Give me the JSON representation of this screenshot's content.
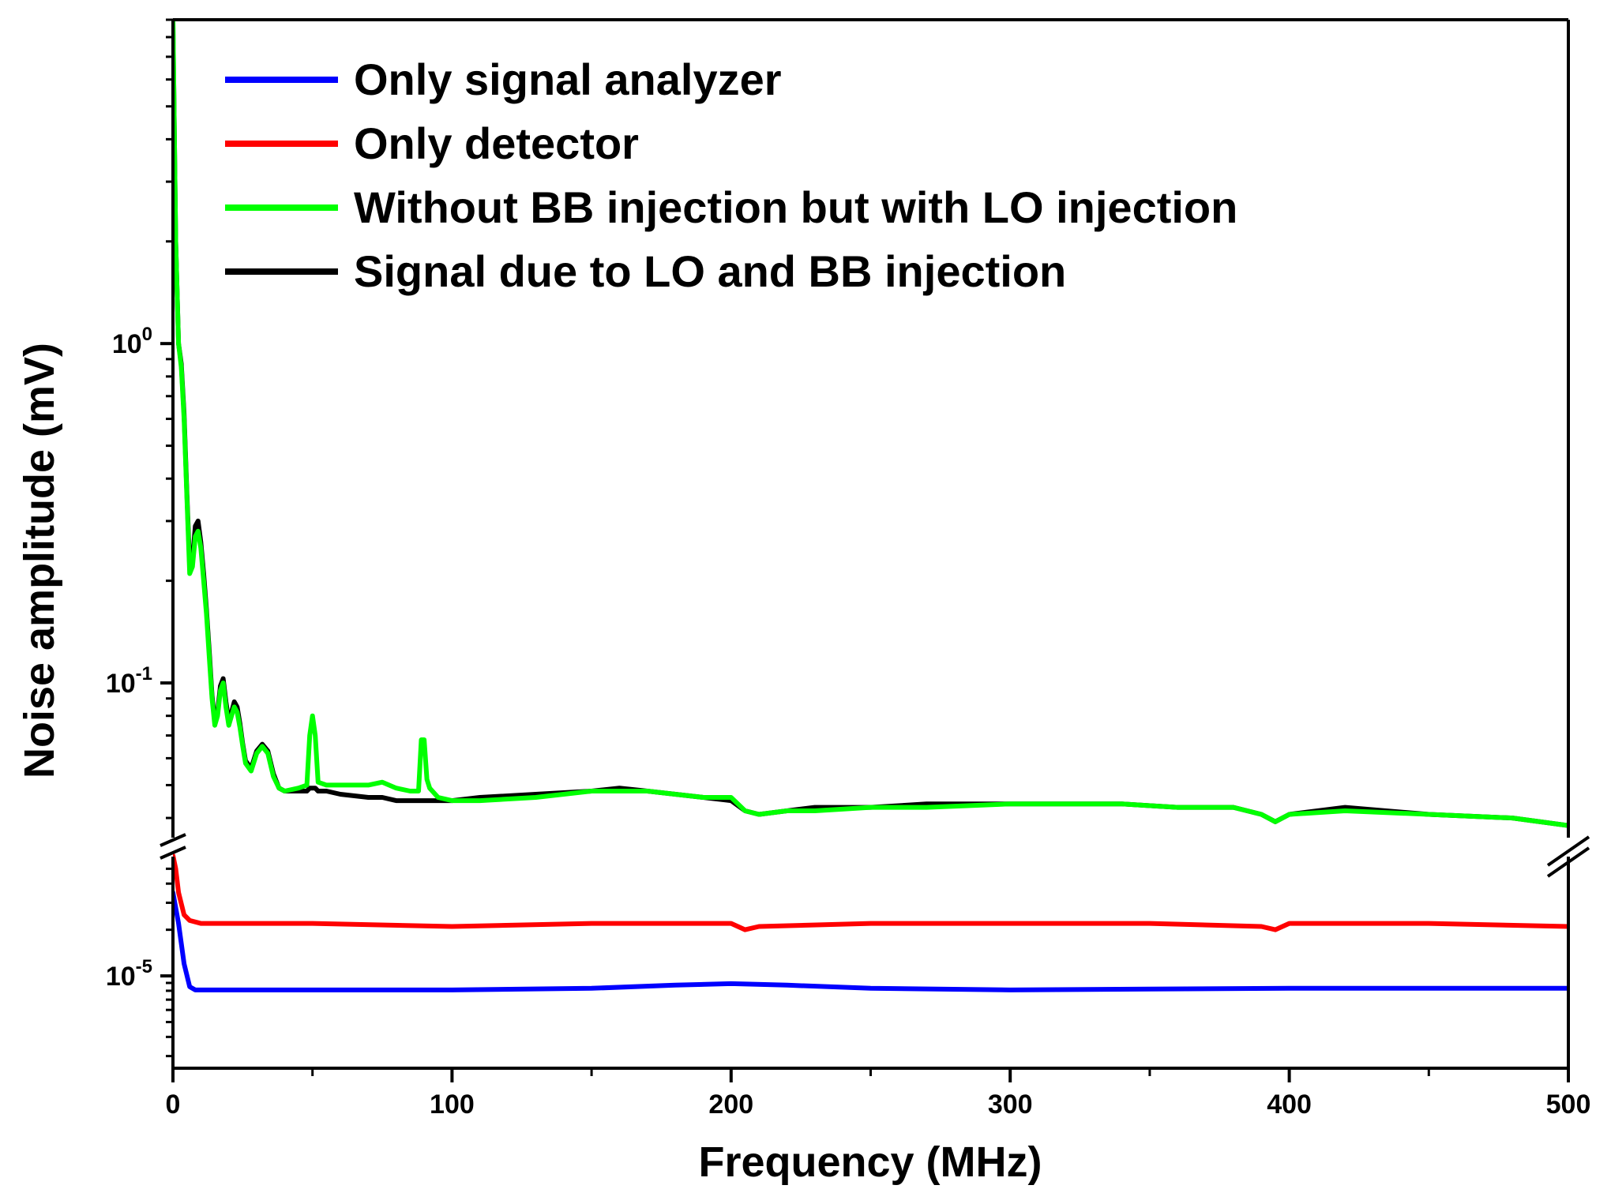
{
  "chart_data": {
    "type": "line",
    "title": "",
    "xlabel": "Frequency (MHz)",
    "ylabel": "Noise amplitude (mV)",
    "xlim": [
      0,
      500
    ],
    "x_ticks": [
      0,
      100,
      200,
      300,
      400,
      500
    ],
    "y_axis": {
      "scale": "log",
      "broken": true,
      "upper_segment_range": [
        0.035,
        9.0
      ],
      "lower_segment_range": [
        2.5e-06,
        6e-05
      ],
      "tick_labels": [
        {
          "base": "10",
          "exp": "0",
          "value": 1.0
        },
        {
          "base": "10",
          "exp": "-1",
          "value": 0.1
        },
        {
          "base": "10",
          "exp": "-5",
          "value": 1e-05
        }
      ]
    },
    "legend_position": "top-left",
    "series": [
      {
        "name": "Only signal analyzer",
        "color": "#0000ff",
        "x": [
          0,
          2,
          4,
          6,
          8,
          20,
          50,
          100,
          150,
          180,
          200,
          220,
          250,
          300,
          350,
          400,
          450,
          500
        ],
        "y": [
          3.5e-05,
          2.2e-05,
          1.2e-05,
          8.5e-06,
          8.1e-06,
          8.1e-06,
          8.1e-06,
          8.1e-06,
          8.3e-06,
          8.7e-06,
          8.9e-06,
          8.7e-06,
          8.3e-06,
          8.1e-06,
          8.2e-06,
          8.3e-06,
          8.3e-06,
          8.3e-06
        ]
      },
      {
        "name": "Only detector",
        "color": "#ff0000",
        "x": [
          0,
          1,
          2,
          4,
          6,
          10,
          50,
          100,
          150,
          200,
          205,
          210,
          250,
          300,
          350,
          390,
          395,
          400,
          450,
          500
        ],
        "y": [
          9e-05,
          5e-05,
          3.5e-05,
          2.5e-05,
          2.3e-05,
          2.2e-05,
          2.2e-05,
          2.1e-05,
          2.2e-05,
          2.2e-05,
          2e-05,
          2.1e-05,
          2.2e-05,
          2.2e-05,
          2.2e-05,
          2.1e-05,
          2e-05,
          2.2e-05,
          2.2e-05,
          2.1e-05
        ]
      },
      {
        "name": "Without BB injection but with LO injection",
        "color": "#00ff00",
        "x": [
          0,
          1,
          2,
          3,
          4,
          5,
          6,
          7,
          8,
          9,
          10,
          11,
          12,
          13,
          14,
          15,
          16,
          17,
          18,
          19,
          20,
          21,
          22,
          23,
          24,
          25,
          26,
          28,
          30,
          32,
          34,
          36,
          38,
          40,
          45,
          48,
          49,
          50,
          51,
          52,
          55,
          60,
          70,
          75,
          80,
          85,
          88,
          89,
          90,
          91,
          92,
          95,
          100,
          110,
          130,
          150,
          160,
          170,
          190,
          200,
          205,
          210,
          220,
          230,
          250,
          270,
          300,
          320,
          340,
          360,
          380,
          390,
          395,
          400,
          420,
          450,
          480,
          500
        ],
        "y": [
          9.0,
          2.0,
          1.0,
          0.85,
          0.6,
          0.35,
          0.21,
          0.22,
          0.27,
          0.28,
          0.25,
          0.2,
          0.16,
          0.12,
          0.09,
          0.075,
          0.08,
          0.095,
          0.1,
          0.085,
          0.075,
          0.08,
          0.085,
          0.082,
          0.074,
          0.065,
          0.058,
          0.055,
          0.062,
          0.065,
          0.062,
          0.053,
          0.049,
          0.048,
          0.049,
          0.05,
          0.07,
          0.08,
          0.07,
          0.051,
          0.05,
          0.05,
          0.05,
          0.051,
          0.049,
          0.048,
          0.048,
          0.068,
          0.068,
          0.052,
          0.049,
          0.046,
          0.045,
          0.045,
          0.046,
          0.048,
          0.048,
          0.048,
          0.046,
          0.046,
          0.042,
          0.041,
          0.042,
          0.042,
          0.043,
          0.043,
          0.044,
          0.044,
          0.044,
          0.043,
          0.043,
          0.041,
          0.039,
          0.041,
          0.042,
          0.041,
          0.04,
          0.038
        ]
      },
      {
        "name": "Signal due to LO and BB injection",
        "color": "#000000",
        "x": [
          0,
          1,
          2,
          3,
          4,
          5,
          6,
          7,
          8,
          9,
          10,
          11,
          12,
          13,
          14,
          15,
          16,
          17,
          18,
          19,
          20,
          21,
          22,
          23,
          24,
          25,
          26,
          28,
          30,
          32,
          34,
          36,
          38,
          40,
          45,
          48,
          49,
          50,
          51,
          52,
          55,
          60,
          70,
          75,
          80,
          85,
          88,
          89,
          90,
          91,
          92,
          95,
          100,
          110,
          130,
          150,
          160,
          170,
          190,
          200,
          205,
          210,
          220,
          230,
          250,
          270,
          300,
          320,
          340,
          360,
          380,
          390,
          395,
          400,
          420,
          450,
          480,
          500
        ],
        "y": [
          9.0,
          2.0,
          1.0,
          0.87,
          0.62,
          0.36,
          0.22,
          0.23,
          0.29,
          0.3,
          0.26,
          0.21,
          0.165,
          0.125,
          0.092,
          0.077,
          0.082,
          0.098,
          0.103,
          0.088,
          0.077,
          0.082,
          0.088,
          0.085,
          0.076,
          0.066,
          0.059,
          0.056,
          0.063,
          0.066,
          0.063,
          0.054,
          0.049,
          0.048,
          0.048,
          0.048,
          0.049,
          0.049,
          0.049,
          0.048,
          0.048,
          0.047,
          0.046,
          0.046,
          0.045,
          0.045,
          0.045,
          0.045,
          0.045,
          0.045,
          0.045,
          0.045,
          0.045,
          0.046,
          0.047,
          0.048,
          0.049,
          0.048,
          0.046,
          0.045,
          0.042,
          0.041,
          0.042,
          0.043,
          0.043,
          0.044,
          0.044,
          0.044,
          0.044,
          0.043,
          0.043,
          0.041,
          0.039,
          0.041,
          0.043,
          0.041,
          0.04,
          0.038
        ]
      }
    ]
  }
}
